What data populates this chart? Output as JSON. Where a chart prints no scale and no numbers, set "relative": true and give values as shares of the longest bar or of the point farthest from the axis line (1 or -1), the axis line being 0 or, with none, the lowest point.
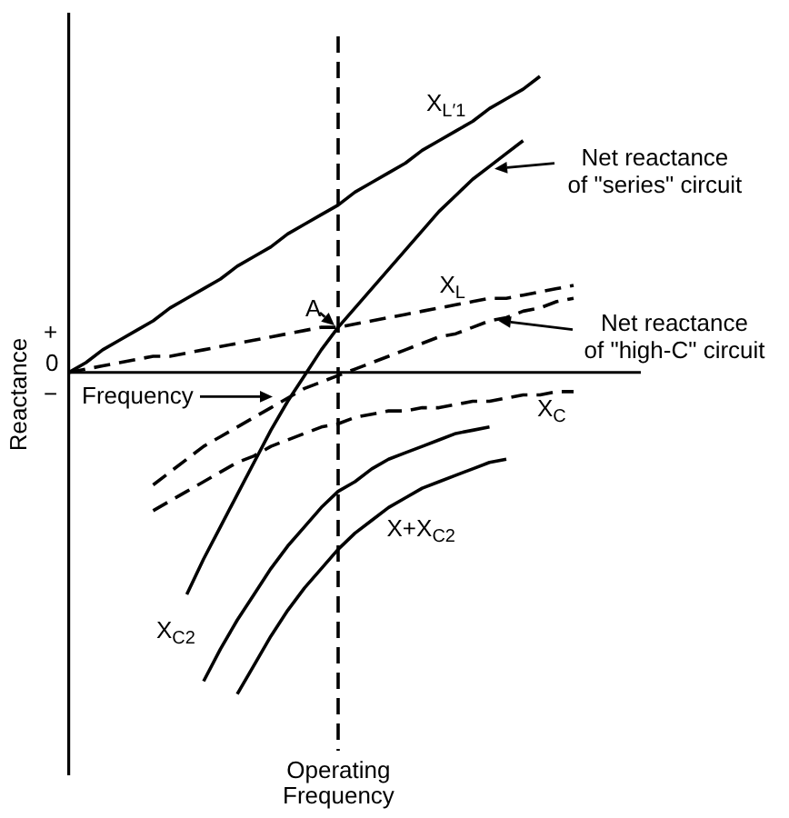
{
  "chart_data": {
    "type": "line",
    "relative": true,
    "xlabel": "Frequency",
    "ylabel": "Reactance",
    "categories": [
      null,
      null,
      null,
      null,
      null,
      null,
      null,
      null,
      null,
      null,
      null,
      null,
      null,
      null,
      null,
      null,
      null,
      null,
      null,
      null,
      null,
      null,
      null,
      null,
      null,
      null,
      null,
      null,
      null,
      null,
      null,
      null,
      null,
      null,
      null
    ],
    "series": [
      {
        "name": "X$_{L′1}$",
        "color": "#000000",
        "values": [
          0,
          0.03,
          0.07,
          0.1,
          0.13,
          0.16,
          0.2,
          0.23,
          0.26,
          0.29,
          0.33,
          0.36,
          0.39,
          0.43,
          0.46,
          0.49,
          0.52,
          0.56,
          0.59,
          0.62,
          0.65,
          0.69,
          0.72,
          0.75,
          0.78,
          0.82,
          0.85,
          0.88,
          0.92,
          null,
          null,
          null,
          null,
          null,
          null
        ]
      },
      {
        "color": "#000000",
        "values": [
          null,
          null,
          null,
          null,
          null,
          null,
          null,
          -0.69,
          -0.58,
          -0.48,
          -0.38,
          -0.28,
          -0.18,
          -0.09,
          -0.01,
          0.07,
          0.14,
          0.2,
          0.26,
          0.32,
          0.38,
          0.44,
          0.5,
          0.55,
          0.6,
          0.64,
          0.68,
          0.72,
          null,
          null,
          null,
          null,
          null,
          null,
          null
        ]
      },
      {
        "name": "X$_{L}$",
        "color": "#000000",
        "line_style": "dashed",
        "values": [
          0,
          0.01,
          0.02,
          0.03,
          0.04,
          0.05,
          0.05,
          0.06,
          0.07,
          0.08,
          0.09,
          0.1,
          0.11,
          0.12,
          0.13,
          0.14,
          0.14,
          0.15,
          0.16,
          0.17,
          0.18,
          0.19,
          0.2,
          0.21,
          0.22,
          0.23,
          0.23,
          0.24,
          0.25,
          0.26,
          0.27,
          null,
          null,
          null,
          null
        ]
      },
      {
        "color": "#000000",
        "line_style": "dashed",
        "values": [
          null,
          null,
          null,
          null,
          null,
          -0.35,
          -0.31,
          -0.27,
          -0.23,
          -0.2,
          -0.17,
          -0.14,
          -0.11,
          -0.08,
          -0.05,
          -0.03,
          -0.01,
          0.01,
          0.03,
          0.05,
          0.07,
          0.09,
          0.11,
          0.12,
          0.14,
          0.16,
          0.17,
          0.19,
          0.2,
          0.22,
          0.23,
          null,
          null,
          null,
          null
        ]
      },
      {
        "name": "X$_{C}$",
        "color": "#000000",
        "line_style": "dashed",
        "values": [
          null,
          null,
          null,
          null,
          null,
          -0.43,
          -0.4,
          -0.37,
          -0.34,
          -0.31,
          -0.28,
          -0.26,
          -0.23,
          -0.21,
          -0.19,
          -0.17,
          -0.16,
          -0.14,
          -0.13,
          -0.12,
          -0.12,
          -0.11,
          -0.11,
          -0.1,
          -0.09,
          -0.09,
          -0.08,
          -0.07,
          -0.07,
          -0.06,
          -0.06,
          null,
          null,
          null,
          null
        ]
      },
      {
        "name": "X$_{C2}$",
        "color": "#000000",
        "values": [
          null,
          null,
          null,
          null,
          null,
          null,
          null,
          null,
          -0.96,
          -0.86,
          -0.77,
          -0.69,
          -0.61,
          -0.54,
          -0.48,
          -0.42,
          -0.37,
          -0.34,
          -0.3,
          -0.27,
          -0.25,
          -0.23,
          -0.21,
          -0.19,
          -0.18,
          -0.17,
          null,
          null,
          null,
          null,
          null,
          null,
          null,
          null,
          null
        ]
      },
      {
        "name": "X+X$_{C2}$",
        "color": "#000000",
        "values": [
          null,
          null,
          null,
          null,
          null,
          null,
          null,
          null,
          null,
          null,
          -1,
          -0.91,
          -0.82,
          -0.74,
          -0.67,
          -0.61,
          -0.55,
          -0.5,
          -0.46,
          -0.42,
          -0.39,
          -0.36,
          -0.34,
          -0.32,
          -0.3,
          -0.28,
          -0.27,
          null,
          null,
          null,
          null,
          null,
          null,
          null,
          null
        ]
      }
    ],
    "annotations": [
      "+",
      "0",
      "−",
      {
        "text": "A",
        "y": 0.14
      },
      "Operating Frequency",
      "Net reactance\nof \"series\" circuit",
      "Net reactance\nof \"high-C\" circuit"
    ],
    "line_style": "solid",
    "marker": "none",
    "grid": false,
    "legend": false
  }
}
